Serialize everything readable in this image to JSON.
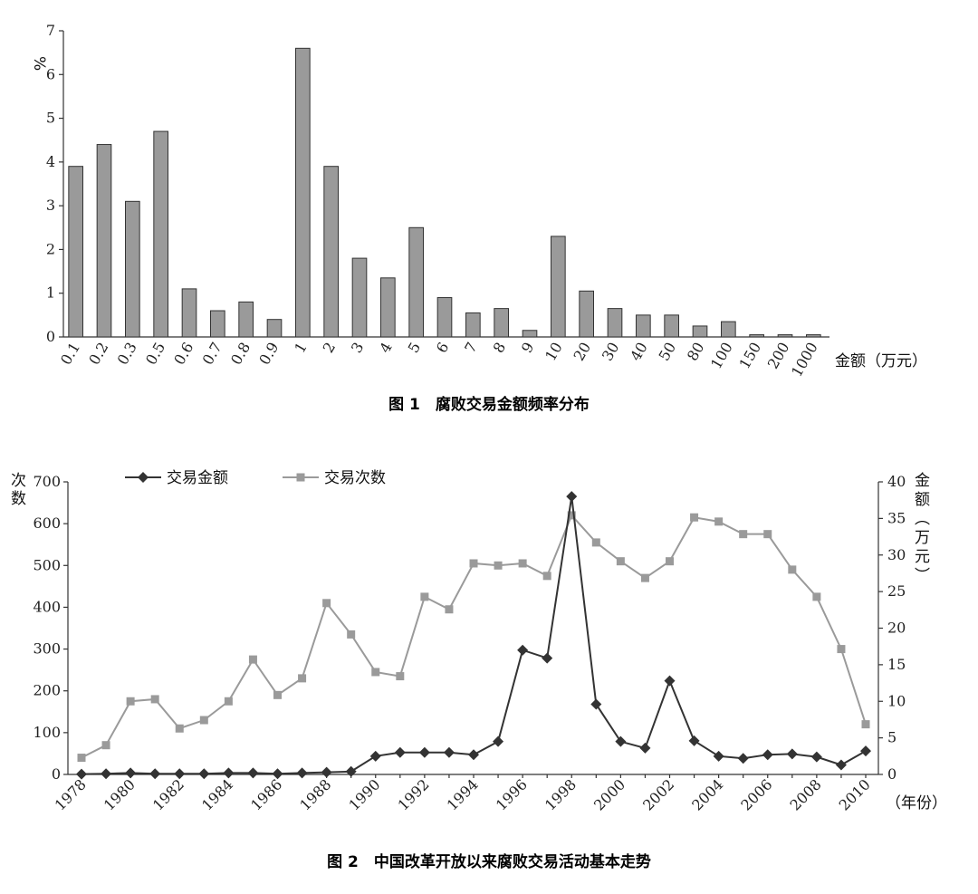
{
  "chart_data": [
    {
      "type": "bar",
      "ylabel": "%",
      "xlabel": "金额（万元）",
      "caption": "图 1　腐败交易金额频率分布",
      "ylim": [
        0,
        7
      ],
      "yticks": [
        0,
        1,
        2,
        3,
        4,
        5,
        6,
        7
      ],
      "categories": [
        "0.1",
        "0.2",
        "0.3",
        "0.5",
        "0.6",
        "0.7",
        "0.8",
        "0.9",
        "1",
        "2",
        "3",
        "4",
        "5",
        "6",
        "7",
        "8",
        "9",
        "10",
        "20",
        "30",
        "40",
        "50",
        "80",
        "100",
        "150",
        "200",
        "1000"
      ],
      "values": [
        3.9,
        4.4,
        3.1,
        4.7,
        1.1,
        0.6,
        0.8,
        0.4,
        6.6,
        3.9,
        1.8,
        1.35,
        2.5,
        0.9,
        0.55,
        0.65,
        0.15,
        2.3,
        1.05,
        0.65,
        0.5,
        0.5,
        0.25,
        0.35,
        0.05,
        0.05,
        0.05
      ],
      "color": "#9a9a9a"
    },
    {
      "type": "line",
      "caption": "图 2　中国改革开放以来腐败交易活动基本走势",
      "ylabel": "次数",
      "y2label": "金额（万元）",
      "xlabel": "（年份）",
      "ylim": [
        0,
        700
      ],
      "y2lim": [
        0,
        40
      ],
      "yticks": [
        0,
        100,
        200,
        300,
        400,
        500,
        600,
        700
      ],
      "y2ticks": [
        0,
        5,
        10,
        15,
        20,
        25,
        30,
        35,
        40
      ],
      "xticks": [
        "1978",
        "1980",
        "1982",
        "1984",
        "1986",
        "1988",
        "1990",
        "1992",
        "1994",
        "1996",
        "1998",
        "2000",
        "2002",
        "2004",
        "2006",
        "2008",
        "2010"
      ],
      "x": [
        1978,
        1979,
        1980,
        1981,
        1982,
        1983,
        1984,
        1985,
        1986,
        1987,
        1988,
        1989,
        1990,
        1991,
        1992,
        1993,
        1994,
        1995,
        1996,
        1997,
        1998,
        1999,
        2000,
        2001,
        2002,
        2003,
        2004,
        2005,
        2006,
        2007,
        2008,
        2009,
        2010
      ],
      "series": [
        {
          "name": "交易金额",
          "axis": "right",
          "marker": "diamond",
          "color": "#333333",
          "values": [
            0.05,
            0.1,
            0.2,
            0.1,
            0.1,
            0.1,
            0.2,
            0.2,
            0.1,
            0.2,
            0.3,
            0.4,
            2.5,
            3.0,
            3.0,
            3.0,
            2.7,
            4.5,
            17.0,
            15.9,
            38.0,
            9.6,
            4.5,
            3.6,
            12.8,
            4.6,
            2.5,
            2.2,
            2.7,
            2.8,
            2.4,
            1.3,
            3.2
          ]
        },
        {
          "name": "交易次数",
          "axis": "left",
          "marker": "square",
          "color": "#9a9a9a",
          "values": [
            40,
            70,
            175,
            180,
            110,
            130,
            175,
            275,
            190,
            230,
            410,
            335,
            245,
            235,
            425,
            395,
            505,
            500,
            505,
            475,
            620,
            555,
            510,
            470,
            510,
            615,
            605,
            575,
            575,
            490,
            425,
            300,
            120
          ]
        }
      ]
    }
  ]
}
